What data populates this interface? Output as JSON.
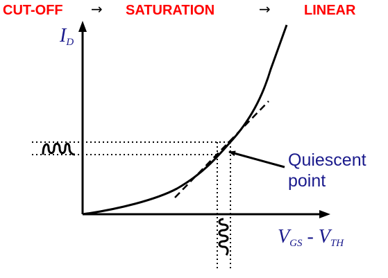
{
  "header": {
    "regions": [
      "CUT-OFF",
      "SATURATION",
      "LINEAR"
    ],
    "arrow": "→"
  },
  "axes": {
    "y_label_main": "I",
    "y_label_sub": "D",
    "x_label_main_1": "V",
    "x_label_sub_1": "GS",
    "x_label_separator": " - ",
    "x_label_main_2": "V",
    "x_label_sub_2": "TH"
  },
  "annotation": {
    "line1": "Quiescent",
    "line2": "point"
  },
  "colors": {
    "region_text": "#ff0000",
    "label_text": "#1a1a8c",
    "curve": "#000000"
  }
}
